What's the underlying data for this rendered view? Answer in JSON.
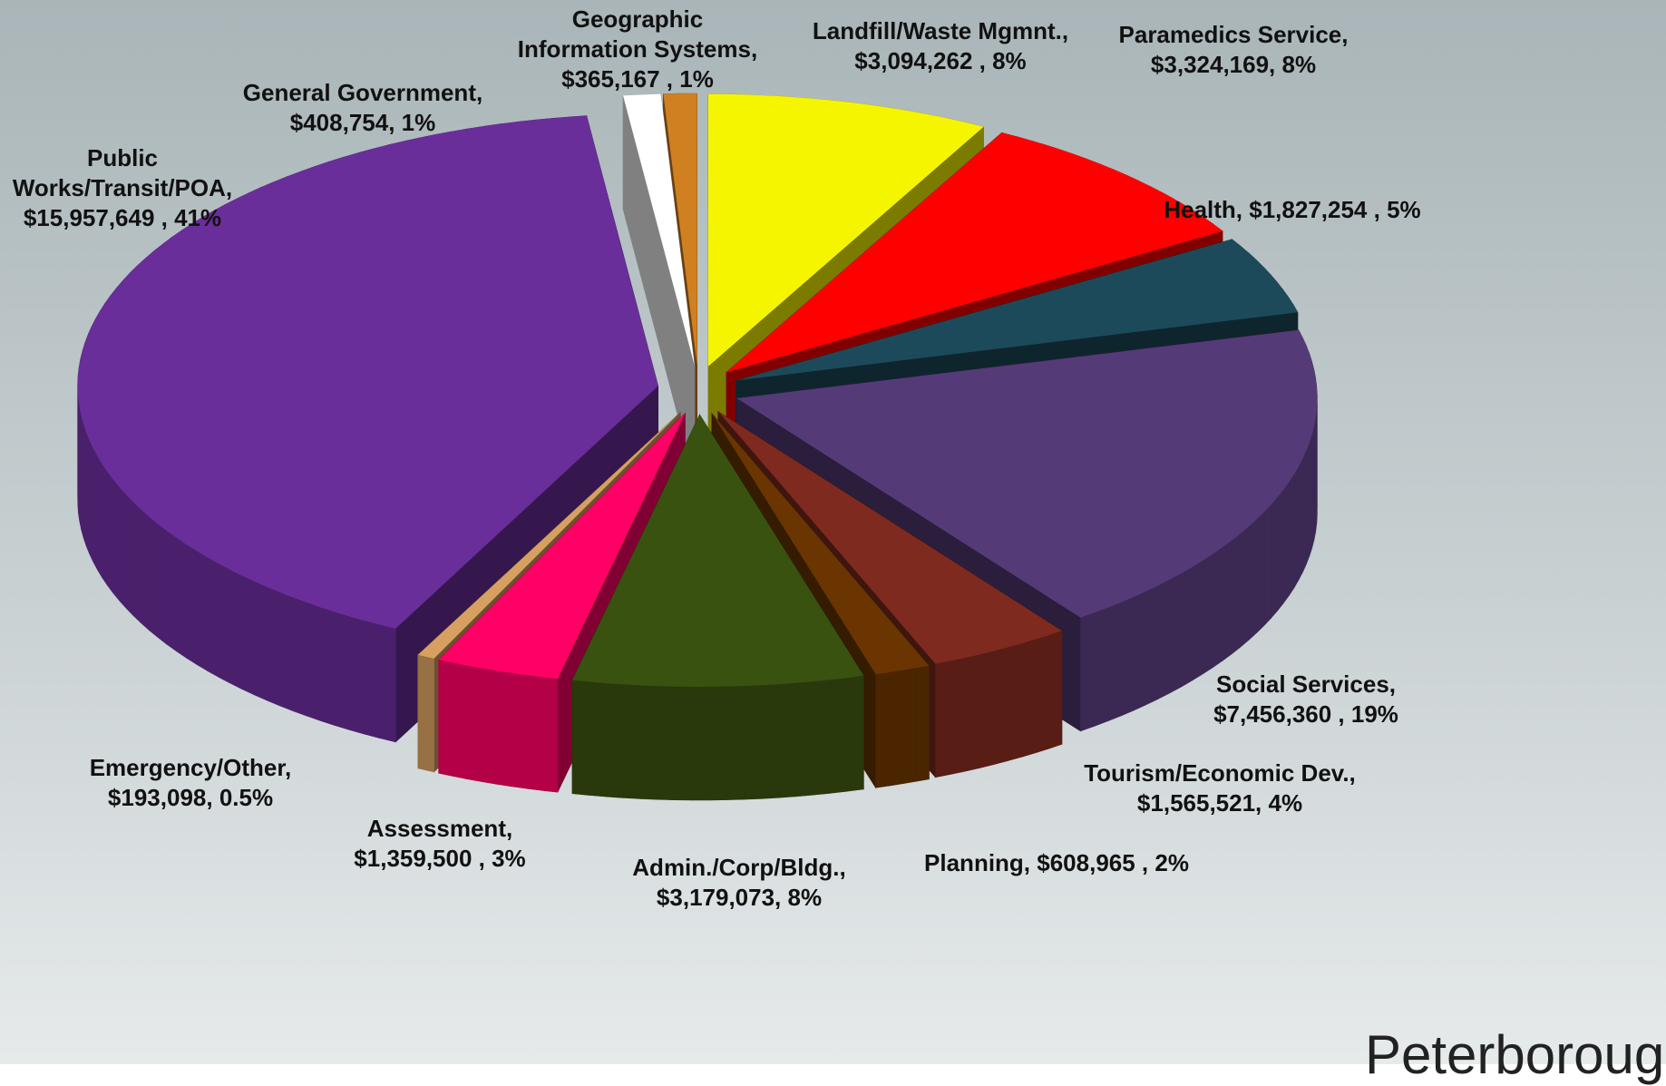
{
  "chart_data": {
    "type": "pie3d",
    "categories": [
      "Landfill/Waste Mgmnt.,",
      "Paramedics Service,",
      "Health,",
      "Social Services,",
      "Tourism/Economic Dev.,",
      "Planning,",
      "Admin./Corp/Bldg.,",
      "Assessment,",
      "Emergency/Other,",
      "Public Works/Transit/POA,",
      "General Government,",
      "Geographic Information Systems,"
    ],
    "values": [
      3094262,
      3324169,
      1827254,
      7456360,
      1565521,
      608965,
      3179073,
      1359500,
      193098,
      15957649,
      408754,
      365167
    ],
    "value_labels": [
      "$3,094,262 , 8%",
      "$3,324,169, 8%",
      "$1,827,254 , 5%",
      "$7,456,360 , 19%",
      "$1,565,521, 4%",
      "$608,965 , 2%",
      "$3,179,073, 8%",
      "$1,359,500 , 3%",
      "$193,098, 0.5%",
      "$15,957,649 , 41%",
      "$408,754, 1%",
      "$365,167 , 1%"
    ],
    "colors": [
      "#f5f500",
      "#ff0000",
      "#1d4a5a",
      "#553a78",
      "#7e2a1e",
      "#6a3500",
      "#3a5210",
      "#ff0066",
      "#d8a060",
      "#6a2e9a",
      "#ffffff",
      "#d08020"
    ]
  },
  "logo_text": "Peterborough"
}
